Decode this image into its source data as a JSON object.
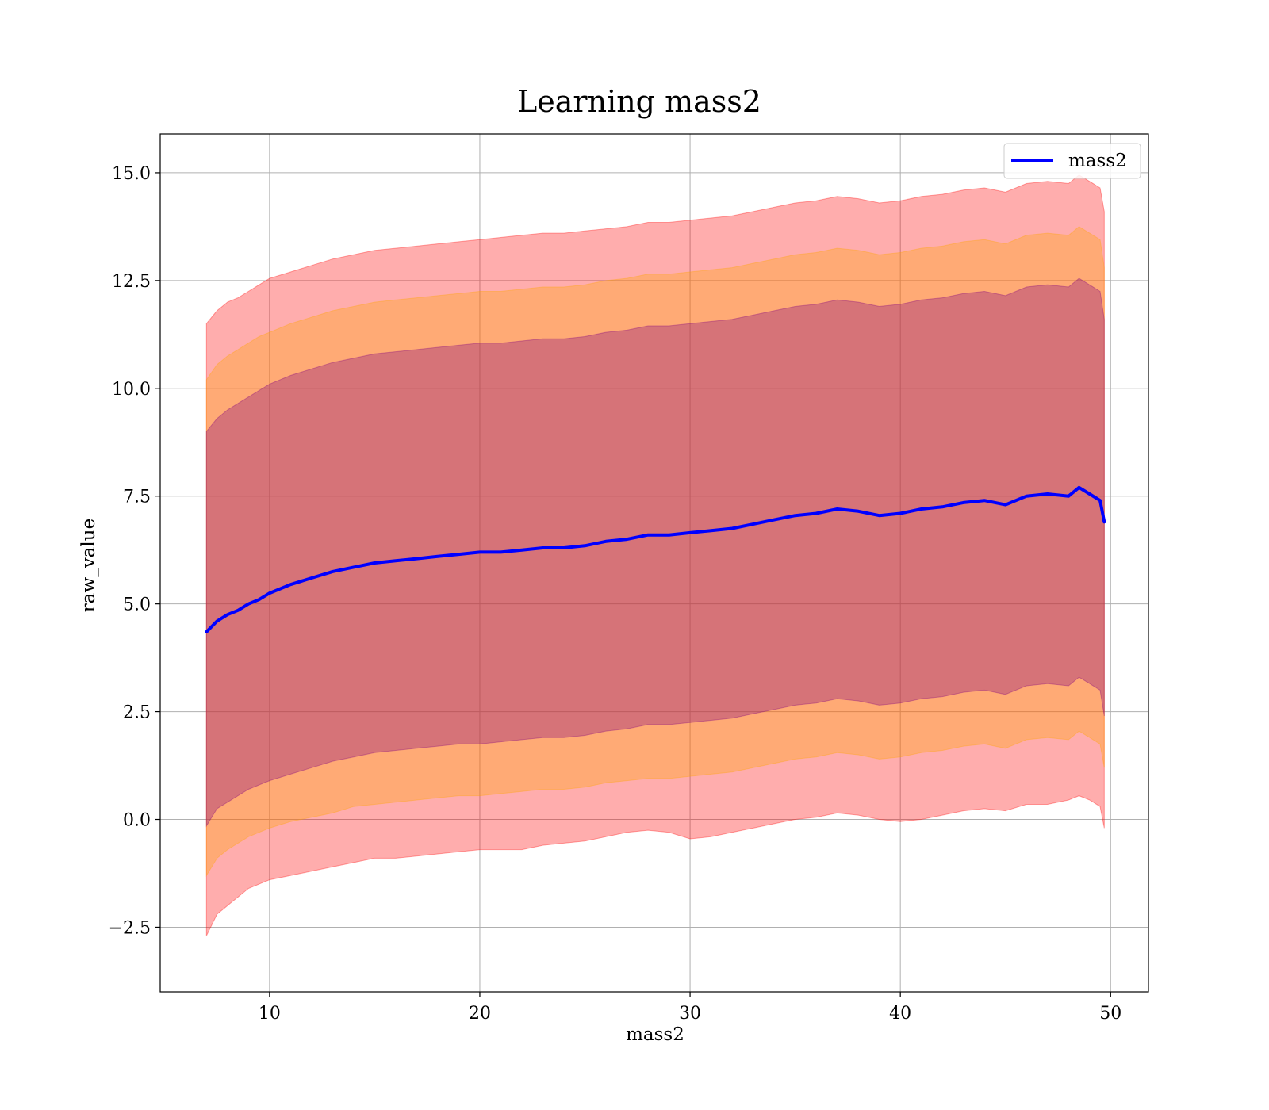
{
  "chart_data": {
    "type": "line",
    "title": "Learning mass2",
    "xlabel": "mass2",
    "ylabel": "raw_value",
    "xlim": [
      4.8,
      51.8
    ],
    "ylim": [
      -4.0,
      15.9
    ],
    "x_ticks": [
      10,
      20,
      30,
      40,
      50
    ],
    "x_tick_labels": [
      "10",
      "20",
      "30",
      "40",
      "50"
    ],
    "y_ticks": [
      -2.5,
      0.0,
      2.5,
      5.0,
      7.5,
      10.0,
      12.5,
      15.0
    ],
    "y_tick_labels": [
      "−2.5",
      "0.0",
      "2.5",
      "5.0",
      "7.5",
      "10.0",
      "12.5",
      "15.0"
    ],
    "grid": true,
    "legend_position": "top-right",
    "x": [
      7.0,
      7.5,
      8.0,
      8.5,
      9.0,
      9.5,
      10.0,
      11.0,
      12.0,
      13.0,
      14.0,
      15.0,
      16.0,
      17.0,
      18.0,
      19.0,
      20.0,
      21.0,
      22.0,
      23.0,
      24.0,
      25.0,
      26.0,
      27.0,
      28.0,
      29.0,
      30.0,
      31.0,
      32.0,
      33.0,
      34.0,
      35.0,
      36.0,
      37.0,
      38.0,
      39.0,
      40.0,
      41.0,
      42.0,
      43.0,
      44.0,
      45.0,
      46.0,
      47.0,
      48.0,
      48.5,
      49.0,
      49.5,
      49.7
    ],
    "series": [
      {
        "name": "mass2",
        "color": "#0000ff",
        "values": [
          4.35,
          4.6,
          4.75,
          4.85,
          5.0,
          5.1,
          5.25,
          5.45,
          5.6,
          5.75,
          5.85,
          5.95,
          6.0,
          6.05,
          6.1,
          6.15,
          6.2,
          6.2,
          6.25,
          6.3,
          6.3,
          6.35,
          6.45,
          6.5,
          6.6,
          6.6,
          6.65,
          6.7,
          6.75,
          6.85,
          6.95,
          7.05,
          7.1,
          7.2,
          7.15,
          7.05,
          7.1,
          7.2,
          7.25,
          7.35,
          7.4,
          7.3,
          7.5,
          7.55,
          7.5,
          7.7,
          7.55,
          7.4,
          6.9
        ]
      }
    ],
    "bands": [
      {
        "sigma": 3,
        "color": "#ff0000",
        "lower": [
          -2.7,
          -2.2,
          -2.0,
          -1.8,
          -1.6,
          -1.5,
          -1.4,
          -1.3,
          -1.2,
          -1.1,
          -1.0,
          -0.9,
          -0.9,
          -0.85,
          -0.8,
          -0.75,
          -0.7,
          -0.7,
          -0.7,
          -0.6,
          -0.55,
          -0.5,
          -0.4,
          -0.3,
          -0.25,
          -0.3,
          -0.45,
          -0.4,
          -0.3,
          -0.2,
          -0.1,
          0.0,
          0.05,
          0.15,
          0.1,
          0.0,
          -0.05,
          0.0,
          0.1,
          0.2,
          0.25,
          0.2,
          0.35,
          0.35,
          0.45,
          0.55,
          0.45,
          0.3,
          -0.2
        ],
        "upper": [
          11.5,
          11.8,
          12.0,
          12.1,
          12.25,
          12.4,
          12.55,
          12.7,
          12.85,
          13.0,
          13.1,
          13.2,
          13.25,
          13.3,
          13.35,
          13.4,
          13.45,
          13.5,
          13.55,
          13.6,
          13.6,
          13.65,
          13.7,
          13.75,
          13.85,
          13.85,
          13.9,
          13.95,
          14.0,
          14.1,
          14.2,
          14.3,
          14.35,
          14.45,
          14.4,
          14.3,
          14.35,
          14.45,
          14.5,
          14.6,
          14.65,
          14.55,
          14.75,
          14.8,
          14.75,
          14.95,
          14.8,
          14.65,
          14.1
        ]
      },
      {
        "sigma": 2,
        "color": "#ffa500",
        "lower": [
          -1.3,
          -0.9,
          -0.7,
          -0.55,
          -0.4,
          -0.3,
          -0.2,
          -0.05,
          0.05,
          0.15,
          0.3,
          0.35,
          0.4,
          0.45,
          0.5,
          0.55,
          0.55,
          0.6,
          0.65,
          0.7,
          0.7,
          0.75,
          0.85,
          0.9,
          0.95,
          0.95,
          1.0,
          1.05,
          1.1,
          1.2,
          1.3,
          1.4,
          1.45,
          1.55,
          1.5,
          1.4,
          1.45,
          1.55,
          1.6,
          1.7,
          1.75,
          1.65,
          1.85,
          1.9,
          1.85,
          2.05,
          1.9,
          1.75,
          1.2
        ],
        "upper": [
          10.2,
          10.55,
          10.75,
          10.9,
          11.05,
          11.2,
          11.3,
          11.5,
          11.65,
          11.8,
          11.9,
          12.0,
          12.05,
          12.1,
          12.15,
          12.2,
          12.25,
          12.25,
          12.3,
          12.35,
          12.35,
          12.4,
          12.5,
          12.55,
          12.65,
          12.65,
          12.7,
          12.75,
          12.8,
          12.9,
          13.0,
          13.1,
          13.15,
          13.25,
          13.2,
          13.1,
          13.15,
          13.25,
          13.3,
          13.4,
          13.45,
          13.35,
          13.55,
          13.6,
          13.55,
          13.75,
          13.6,
          13.45,
          12.8
        ]
      },
      {
        "sigma": 1,
        "color": "#800080",
        "lower": [
          -0.15,
          0.25,
          0.4,
          0.55,
          0.7,
          0.8,
          0.9,
          1.05,
          1.2,
          1.35,
          1.45,
          1.55,
          1.6,
          1.65,
          1.7,
          1.75,
          1.75,
          1.8,
          1.85,
          1.9,
          1.9,
          1.95,
          2.05,
          2.1,
          2.2,
          2.2,
          2.25,
          2.3,
          2.35,
          2.45,
          2.55,
          2.65,
          2.7,
          2.8,
          2.75,
          2.65,
          2.7,
          2.8,
          2.85,
          2.95,
          3.0,
          2.9,
          3.1,
          3.15,
          3.1,
          3.3,
          3.15,
          3.0,
          2.4
        ],
        "upper": [
          9.0,
          9.3,
          9.5,
          9.65,
          9.8,
          9.95,
          10.1,
          10.3,
          10.45,
          10.6,
          10.7,
          10.8,
          10.85,
          10.9,
          10.95,
          11.0,
          11.05,
          11.05,
          11.1,
          11.15,
          11.15,
          11.2,
          11.3,
          11.35,
          11.45,
          11.45,
          11.5,
          11.55,
          11.6,
          11.7,
          11.8,
          11.9,
          11.95,
          12.05,
          12.0,
          11.9,
          11.95,
          12.05,
          12.1,
          12.2,
          12.25,
          12.15,
          12.35,
          12.4,
          12.35,
          12.55,
          12.4,
          12.25,
          11.6
        ]
      }
    ]
  }
}
